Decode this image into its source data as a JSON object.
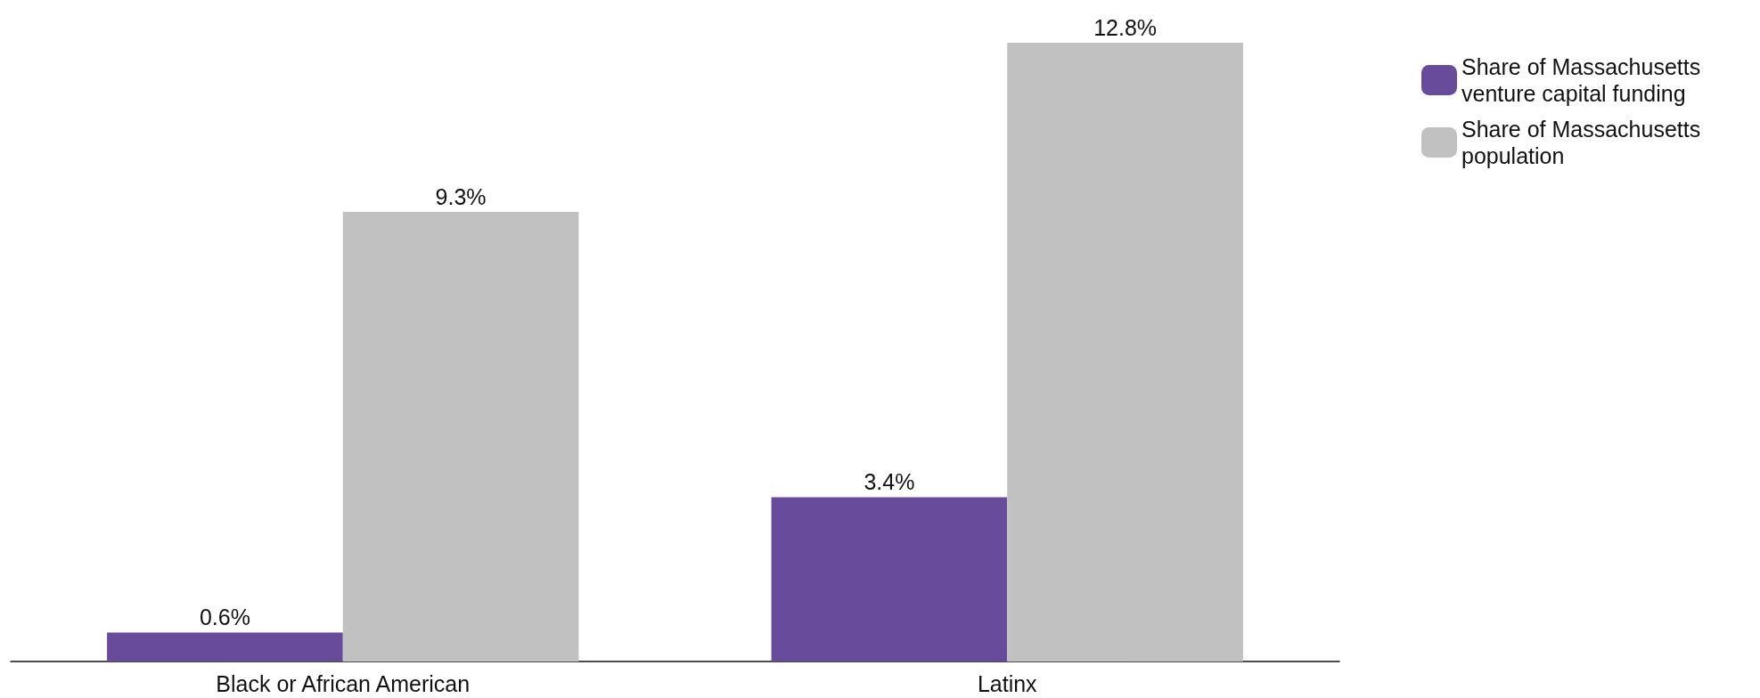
{
  "chart_data": {
    "type": "bar",
    "categories": [
      "Black or African American",
      "Latinx"
    ],
    "series": [
      {
        "name": "Share of Massachusetts venture capital funding",
        "color": "#684b9b",
        "values": [
          0.6,
          3.4
        ],
        "value_labels": [
          "0.6%",
          "3.4%"
        ]
      },
      {
        "name": "Share of Massachusetts population",
        "color": "#c1c1c1",
        "values": [
          9.3,
          12.8
        ],
        "value_labels": [
          "9.3%",
          "12.8%"
        ]
      }
    ],
    "legend": "top right",
    "grid": false,
    "tick_labels": "x"
  }
}
